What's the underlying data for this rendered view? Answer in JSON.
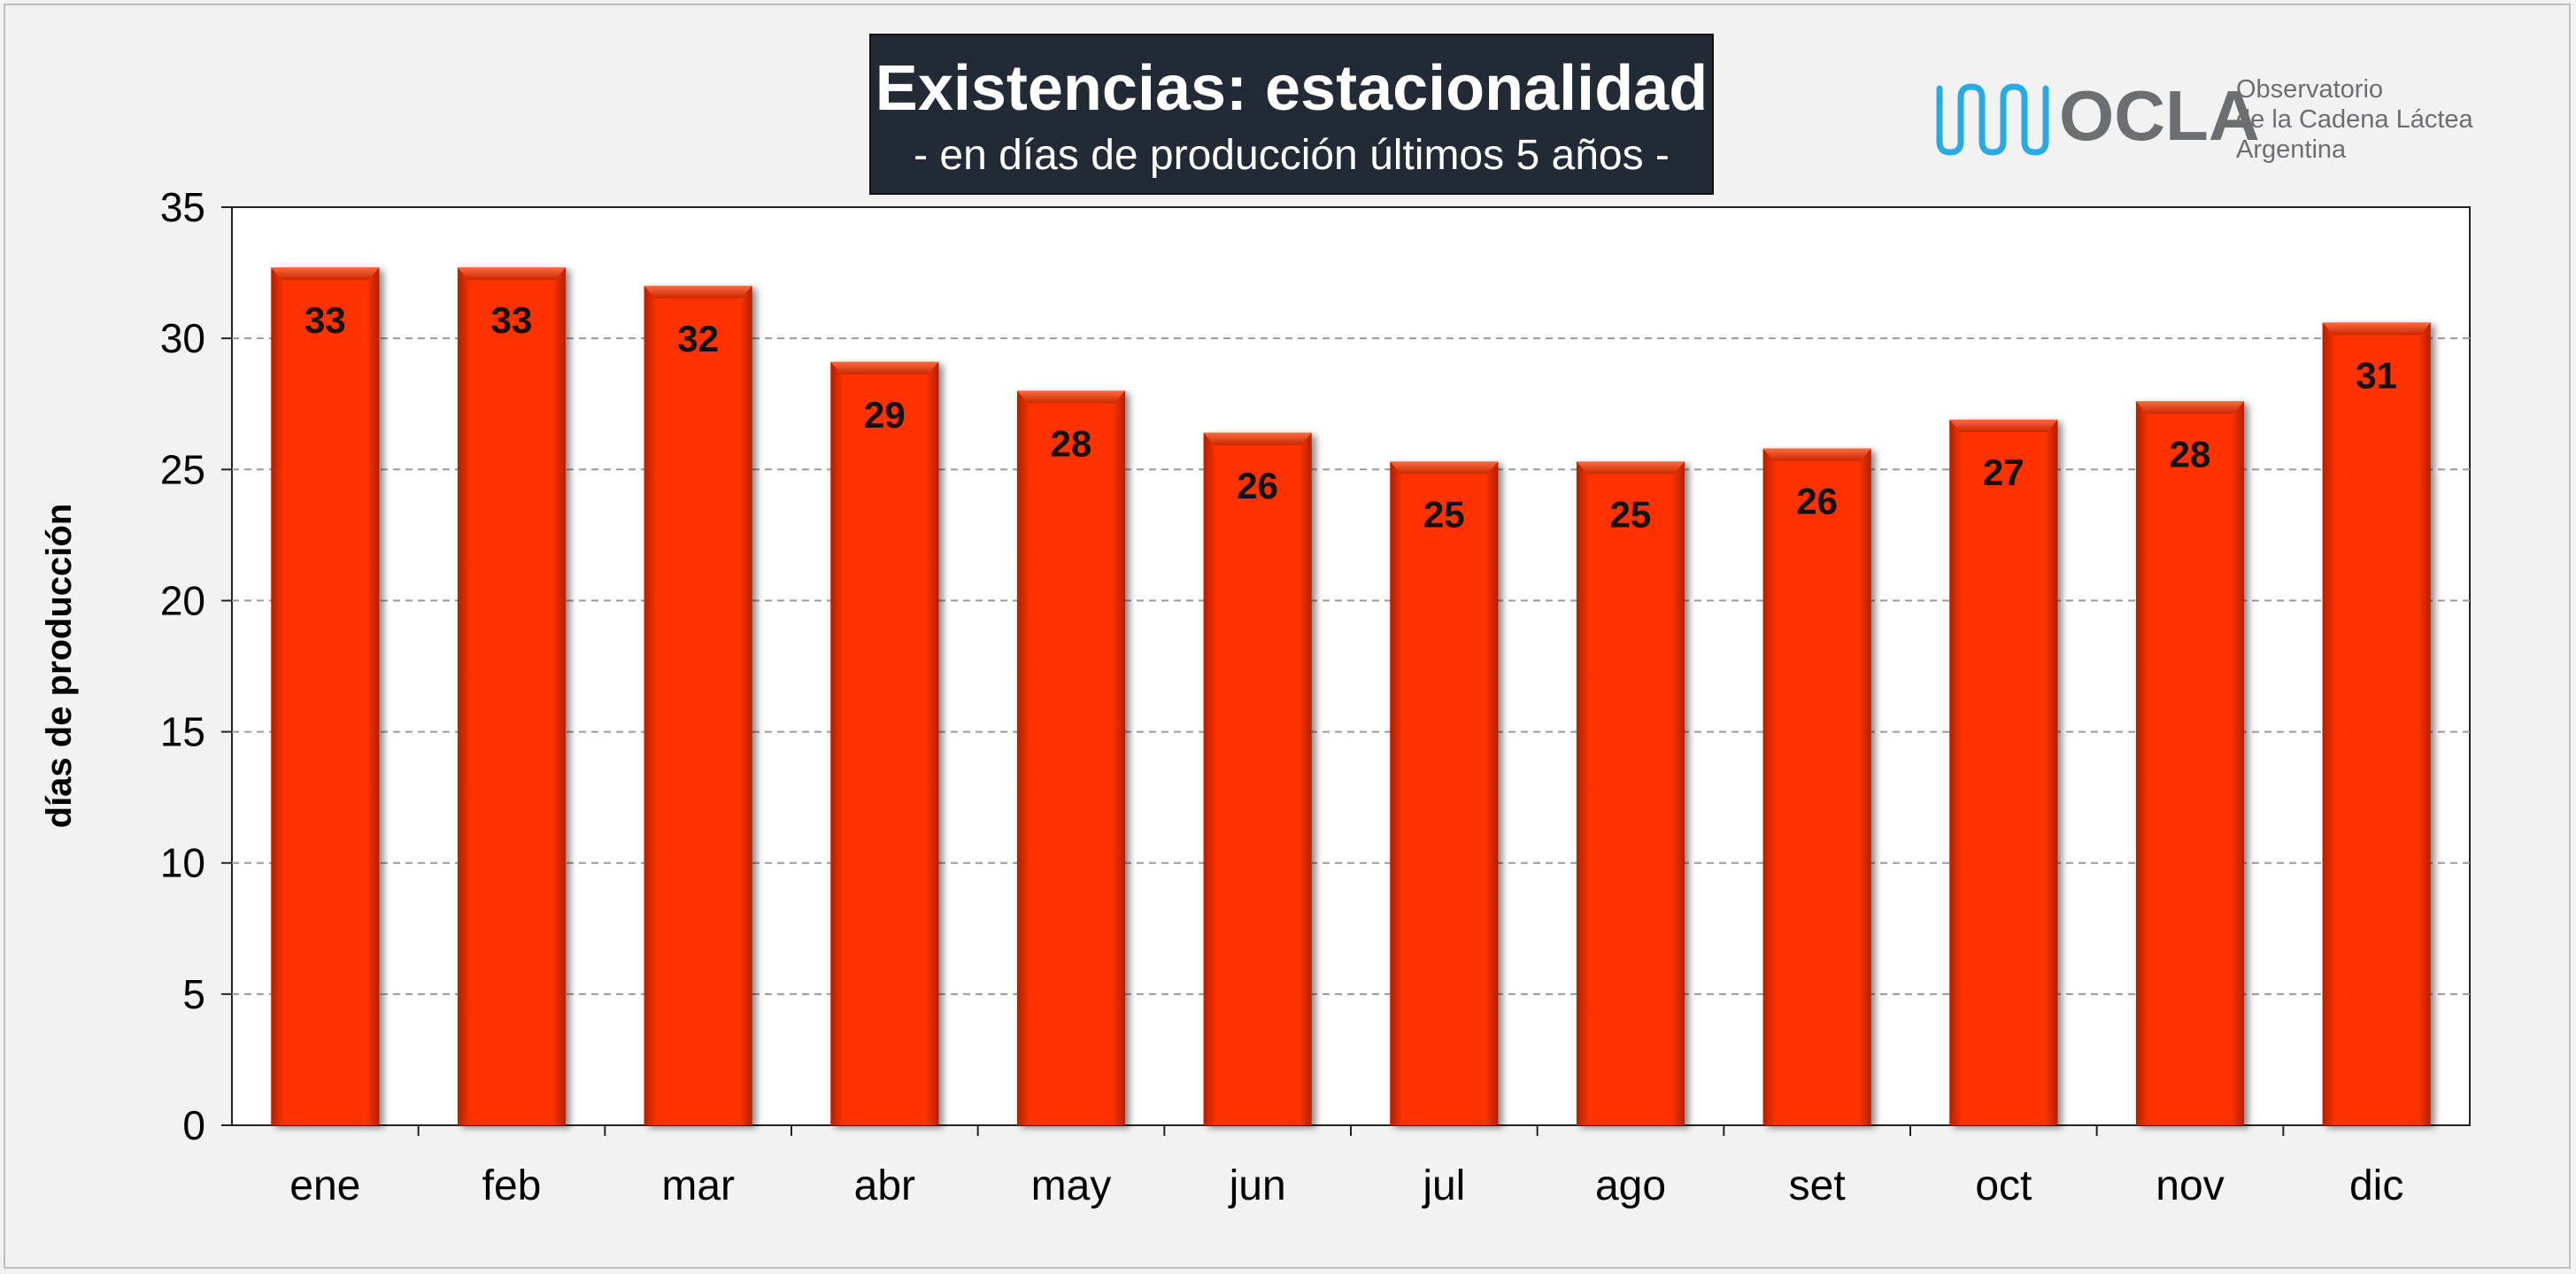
{
  "chart_data": {
    "type": "bar",
    "title": "Existencias: estacionalidad",
    "subtitle": "- en días de producción últimos 5 años -",
    "ylabel": "días de producción",
    "xlabel": "",
    "categories": [
      "ene",
      "feb",
      "mar",
      "abr",
      "may",
      "jun",
      "jul",
      "ago",
      "set",
      "oct",
      "nov",
      "dic"
    ],
    "values": [
      32.7,
      32.7,
      32.0,
      29.1,
      28.0,
      26.4,
      25.3,
      25.3,
      25.8,
      26.9,
      27.6,
      30.6
    ],
    "data_labels": [
      "33",
      "33",
      "32",
      "29",
      "28",
      "26",
      "25",
      "25",
      "26",
      "27",
      "28",
      "31"
    ],
    "ylim": [
      0,
      35
    ],
    "yticks": [
      0,
      5,
      10,
      15,
      20,
      25,
      30,
      35
    ],
    "grid": true,
    "bar_color": "#ff3300"
  },
  "logo": {
    "name": "OCLA",
    "line1": "Observatorio",
    "line2": "de la Cadena Láctea",
    "line3": "Argentina",
    "wave_color": "#29abe2",
    "text_color": "#6d6e71"
  }
}
